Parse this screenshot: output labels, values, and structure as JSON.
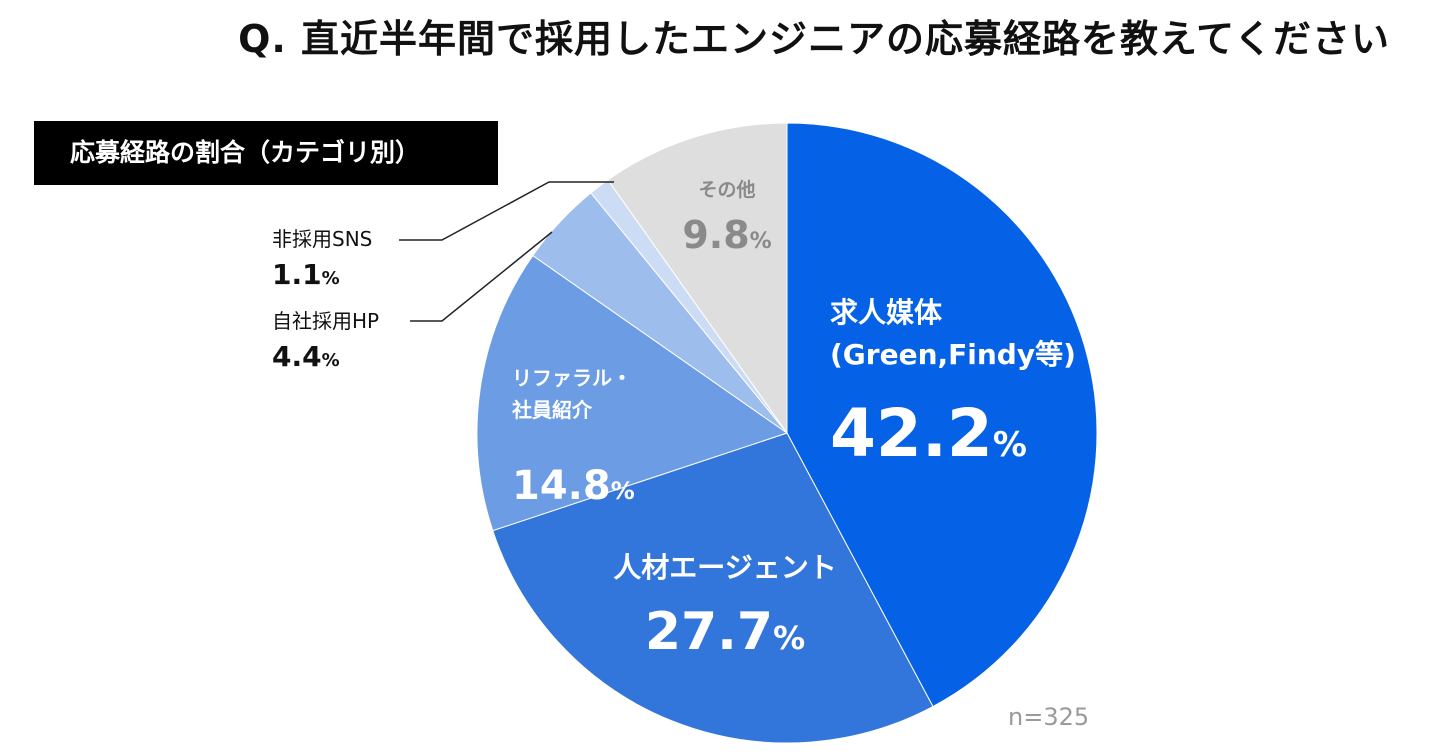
{
  "title": "Q. 直近半年間で採用したエンジニアの応募経路を教えてください",
  "category_label": "応募経路の割合（カテゴリ別）",
  "sample_size": "n=325",
  "chart_data": {
    "type": "pie",
    "title": "Q. 直近半年間で採用したエンジニアの応募経路を教えてください",
    "subtitle": "応募経路の割合（カテゴリ別）",
    "unit": "%",
    "slices": [
      {
        "lines": [
          "求人媒体",
          "(Green,Findy等)"
        ],
        "value": 42.2,
        "value_text": "42.2",
        "color": "#0561e6",
        "label_color": "#ffffff"
      },
      {
        "lines": [
          "人材エージェント"
        ],
        "value": 27.7,
        "value_text": "27.7",
        "color": "#3275db",
        "label_color": "#ffffff"
      },
      {
        "lines": [
          "リファラル・",
          "社員紹介"
        ],
        "value": 14.8,
        "value_text": "14.8",
        "color": "#6b9ce4",
        "label_color": "#ffffff"
      },
      {
        "lines": [
          "自社採用HP"
        ],
        "value": 4.4,
        "value_text": "4.4",
        "color": "#9dbdec",
        "label_color": "#111111"
      },
      {
        "lines": [
          "非採用SNS"
        ],
        "value": 1.1,
        "value_text": "1.1",
        "color": "#cddcf5",
        "label_color": "#111111"
      },
      {
        "lines": [
          "その他"
        ],
        "value": 9.8,
        "value_text": "9.8",
        "color": "#dedede",
        "label_color": "#8a8a8a"
      }
    ]
  }
}
